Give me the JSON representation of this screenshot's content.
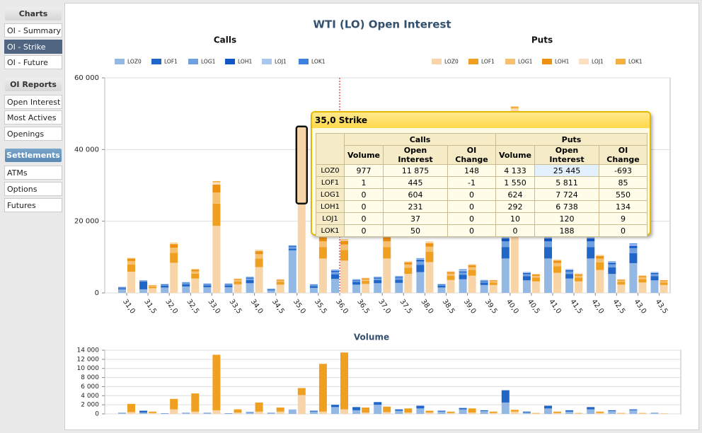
{
  "sidebar": [
    {
      "title": "Charts",
      "items": [
        "OI - Summary",
        "OI - Strike",
        "OI - Future"
      ]
    },
    {
      "title": "OI Reports",
      "items": [
        "Open Interest",
        "Most Actives",
        "Openings"
      ]
    },
    {
      "title": "Settlements",
      "items": [
        "ATMs",
        "Options",
        "Futures"
      ]
    }
  ],
  "chart_data": [
    {
      "type": "stacked_bar",
      "title": "WTI (LO) Open Interest",
      "categories": [
        "31,0",
        "31,5",
        "32,0",
        "32,5",
        "33,0",
        "33,5",
        "34,0",
        "34,5",
        "35,0",
        "35,5",
        "36,0",
        "36,5",
        "37,0",
        "37,5",
        "38,0",
        "38,5",
        "39,0",
        "39,5",
        "40,0",
        "40,5",
        "41,0",
        "41,5",
        "42,0",
        "42,5",
        "43,0",
        "43,5"
      ],
      "marker": "36,0",
      "ylim": [
        0,
        60000
      ],
      "yticks": [
        0,
        {
          "value": 20000,
          "label": "20 000"
        },
        {
          "value": 40000,
          "label": "40 000"
        },
        {
          "value": 60000,
          "label": "60 000"
        }
      ],
      "grid": true,
      "groups": [
        {
          "name": "Calls",
          "series": [
            {
              "name": "LOZ0",
              "color": "#94b8e4",
              "values": [
                1000,
                1000,
                1500,
                1800,
                1600,
                1600,
                2700,
                700,
                11875,
                1400,
                3900,
                2300,
                2700,
                2800,
                5800,
                1500,
                3800,
                2200,
                9600,
                3500,
                9600,
                4000,
                9600,
                5300,
                8300,
                3500
              ]
            },
            {
              "name": "LOF1",
              "color": "#1f66c8",
              "values": [
                300,
                2200,
                500,
                600,
                500,
                500,
                900,
                250,
                445,
                500,
                1300,
                800,
                900,
                900,
                2000,
                500,
                1300,
                700,
                3200,
                1200,
                3200,
                1300,
                3200,
                1800,
                2800,
                1200
              ]
            },
            {
              "name": "LOG1",
              "color": "#6fa0e0",
              "values": [
                200,
                150,
                250,
                300,
                250,
                250,
                450,
                120,
                604,
                250,
                650,
                350,
                450,
                500,
                1000,
                250,
                600,
                350,
                1600,
                550,
                1600,
                700,
                1600,
                900,
                1400,
                550
              ]
            },
            {
              "name": "LOH1",
              "color": "#1058c8",
              "values": [
                100,
                80,
                120,
                150,
                130,
                130,
                230,
                60,
                231,
                120,
                330,
                180,
                230,
                230,
                450,
                120,
                300,
                180,
                800,
                300,
                800,
                330,
                800,
                400,
                650,
                300
              ]
            },
            {
              "name": "LOJ1",
              "color": "#a9c6ec",
              "values": [
                60,
                40,
                80,
                90,
                70,
                70,
                130,
                40,
                37,
                80,
                200,
                100,
                130,
                150,
                300,
                80,
                400,
                100,
                500,
                150,
                500,
                170,
                500,
                250,
                400,
                150
              ]
            },
            {
              "name": "LOK1",
              "color": "#3d82e0",
              "values": [
                40,
                30,
                50,
                60,
                50,
                50,
                90,
                30,
                50,
                50,
                120,
                70,
                90,
                120,
                150,
                50,
                200,
                70,
                300,
                100,
                300,
                100,
                300,
                150,
                250,
                100
              ]
            }
          ]
        },
        {
          "name": "Puts",
          "series": [
            {
              "name": "LOZ0",
              "color": "#f8d5a8",
              "values": [
                5900,
                1300,
                8400,
                4000,
                18700,
                2400,
                7200,
                2300,
                25445,
                9600,
                9000,
                2500,
                9600,
                5300,
                8600,
                3600,
                4800,
                2200,
                31200,
                3200,
                5600,
                3200,
                6400,
                2300,
                2900,
                2200
              ]
            },
            {
              "name": "LOF1",
              "color": "#f0a020",
              "values": [
                2000,
                450,
                2800,
                1350,
                6200,
                800,
                2400,
                760,
                5811,
                3200,
                3000,
                840,
                3200,
                1760,
                2860,
                1200,
                1600,
                720,
                10400,
                1060,
                1860,
                1080,
                2120,
                760,
                980,
                720
              ]
            },
            {
              "name": "LOG1",
              "color": "#f6c070",
              "values": [
                1000,
                220,
                1400,
                670,
                3100,
                400,
                1200,
                380,
                7724,
                1600,
                1500,
                420,
                1600,
                880,
                1430,
                600,
                800,
                360,
                5200,
                530,
                930,
                540,
                1060,
                380,
                490,
                360
              ]
            },
            {
              "name": "LOH1",
              "color": "#ee9010",
              "values": [
                700,
                150,
                1000,
                470,
                2200,
                280,
                840,
                270,
                6738,
                1100,
                1050,
                300,
                1100,
                620,
                1000,
                420,
                560,
                250,
                3600,
                370,
                650,
                380,
                740,
                270,
                340,
                250
              ]
            },
            {
              "name": "LOJ1",
              "color": "#fae0c0",
              "values": [
                150,
                50,
                280,
                130,
                650,
                80,
                240,
                60,
                120,
                320,
                300,
                90,
                320,
                170,
                280,
                120,
                160,
                50,
                1040,
                90,
                180,
                130,
                190,
                60,
                120,
                50
              ]
            },
            {
              "name": "LOK1",
              "color": "#f3b040",
              "values": [
                50,
                30,
                120,
                80,
                350,
                40,
                120,
                30,
                188,
                180,
                150,
                50,
                180,
                70,
                130,
                60,
                80,
                20,
                560,
                50,
                80,
                70,
                90,
                30,
                70,
                20
              ]
            }
          ]
        }
      ]
    },
    {
      "type": "stacked_bar",
      "title": "Volume",
      "ylim": [
        0,
        14000
      ],
      "yticks": [
        0,
        {
          "value": 2000,
          "label": "2 000"
        },
        {
          "value": 4000,
          "label": "4 000"
        },
        {
          "value": 6000,
          "label": "6 000"
        },
        {
          "value": 8000,
          "label": "8 000"
        },
        {
          "value": 10000,
          "label": "10 000"
        },
        {
          "value": 12000,
          "label": "12 000"
        },
        {
          "value": 14000,
          "label": "14 000"
        }
      ],
      "grid": true,
      "groups": [
        {
          "series": [
            {
              "name": "LOZ0",
              "color": "#94b8e4",
              "values": [
                200,
                300,
                100,
                200,
                200,
                100,
                300,
                200,
                977,
                500,
                1500,
                800,
                2000,
                700,
                1200,
                500,
                1000,
                600,
                2500,
                300,
                1200,
                500,
                1000,
                600,
                800,
                200
              ]
            },
            {
              "name": "LOF1",
              "color": "#1f66c8",
              "values": [
                50,
                400,
                50,
                50,
                50,
                50,
                100,
                50,
                1,
                200,
                500,
                700,
                600,
                300,
                600,
                200,
                300,
                200,
                2700,
                200,
                600,
                300,
                500,
                200,
                200,
                50
              ]
            }
          ]
        },
        {
          "series": [
            {
              "name": "LOZ0",
              "color": "#f8d5a8",
              "values": [
                400,
                200,
                1000,
                500,
                800,
                300,
                500,
                500,
                4133,
                500,
                1000,
                300,
                400,
                300,
                300,
                200,
                300,
                200,
                500,
                100,
                200,
                100,
                200,
                100,
                100,
                50
              ]
            },
            {
              "name": "LOF1",
              "color": "#f0a020",
              "values": [
                1800,
                300,
                2300,
                4000,
                12200,
                700,
                2000,
                900,
                1550,
                10500,
                12500,
                1100,
                1200,
                900,
                400,
                300,
                900,
                300,
                400,
                100,
                300,
                100,
                300,
                100,
                100,
                50
              ]
            }
          ]
        }
      ]
    }
  ],
  "tooltip": {
    "title": "35,0 Strike",
    "groups": [
      "Calls",
      "Puts"
    ],
    "columns": [
      "Volume",
      "Open Interest",
      "OI Change"
    ],
    "rows": [
      [
        "LOZ0",
        "977",
        "11 875",
        "148",
        "4 133",
        "25 445",
        "-693"
      ],
      [
        "LOF1",
        "1",
        "445",
        "-1",
        "1 550",
        "5 811",
        "85"
      ],
      [
        "LOG1",
        "0",
        "604",
        "0",
        "624",
        "7 724",
        "550"
      ],
      [
        "LOH1",
        "0",
        "231",
        "0",
        "292",
        "6 738",
        "134"
      ],
      [
        "LOJ1",
        "0",
        "37",
        "0",
        "10",
        "120",
        "9"
      ],
      [
        "LOK1",
        "0",
        "50",
        "0",
        "0",
        "188",
        "0"
      ]
    ]
  }
}
